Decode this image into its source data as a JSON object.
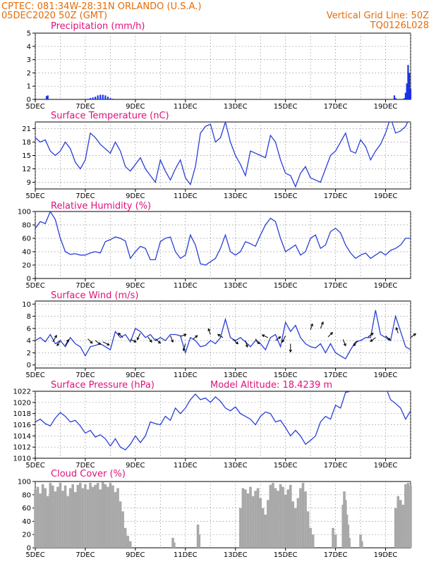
{
  "header": {
    "line1_left": "CPTEC:   081:34W-28:31N   ORLANDO (U.S.A.)",
    "line2_left": "05DEC2020 50Z (GMT)",
    "line1_right": "Vertical Grid Line: 50Z",
    "line2_right": "TQ0126L028"
  },
  "colors": {
    "header": "#e46c0a",
    "panel_title": "#e0107a",
    "precip_bars": "#1a33e6",
    "line_series": "#2a3fd8",
    "cloud_bars": "#a8a8a8",
    "wind_arrows": "#000000"
  },
  "x_axis": {
    "ticks": [
      "5DEC",
      "7DEC",
      "9DEC",
      "11DEC",
      "13DEC",
      "15DEC",
      "17DEC",
      "19DEC"
    ],
    "range_days": [
      0,
      15.0
    ]
  },
  "chart_data": [
    {
      "type": "bar",
      "id": "precip",
      "title": "Precipitation (mm/h)",
      "ylim": [
        0,
        5
      ],
      "yticks": [
        "0",
        "1",
        "2",
        "3",
        "4",
        "5"
      ],
      "grid": true,
      "points": [
        [
          0.45,
          0.25
        ],
        [
          0.5,
          0.3
        ],
        [
          2.1,
          0.05
        ],
        [
          2.2,
          0.1
        ],
        [
          2.3,
          0.15
        ],
        [
          2.4,
          0.2
        ],
        [
          2.5,
          0.3
        ],
        [
          2.6,
          0.35
        ],
        [
          2.7,
          0.35
        ],
        [
          2.8,
          0.3
        ],
        [
          2.9,
          0.2
        ],
        [
          3.0,
          0.1
        ],
        [
          3.1,
          0.05
        ],
        [
          14.35,
          0.3
        ],
        [
          14.4,
          0.1
        ],
        [
          14.75,
          0.1
        ],
        [
          14.8,
          0.5
        ],
        [
          14.85,
          1.2
        ],
        [
          14.9,
          2.6
        ],
        [
          14.95,
          2.0
        ],
        [
          15.0,
          0.8
        ]
      ]
    },
    {
      "type": "line",
      "id": "temperature",
      "title": "Surface Temperature (nC)",
      "ylim": [
        7.5,
        22.5
      ],
      "yticks": [
        "9",
        "12",
        "15",
        "18",
        "21"
      ],
      "grid": true,
      "x": [
        0.0,
        0.2,
        0.4,
        0.6,
        0.8,
        1.0,
        1.2,
        1.4,
        1.6,
        1.8,
        2.0,
        2.2,
        2.4,
        2.6,
        2.8,
        3.0,
        3.2,
        3.4,
        3.6,
        3.8,
        4.0,
        4.2,
        4.4,
        4.6,
        4.8,
        5.0,
        5.2,
        5.4,
        5.6,
        5.8,
        6.0,
        6.2,
        6.4,
        6.6,
        6.8,
        7.0,
        7.2,
        7.4,
        7.6,
        7.8,
        8.0,
        8.2,
        8.4,
        8.6,
        8.8,
        9.0,
        9.2,
        9.4,
        9.6,
        9.8,
        10.0,
        10.2,
        10.4,
        10.6,
        10.8,
        11.0,
        11.2,
        11.4,
        11.6,
        11.8,
        12.0,
        12.2,
        12.4,
        12.6,
        12.8,
        13.0,
        13.2,
        13.4,
        13.6,
        13.8,
        14.0,
        14.2,
        14.4,
        14.6,
        14.8,
        15.0
      ],
      "y": [
        19.0,
        18.0,
        18.5,
        16.0,
        15.0,
        16.0,
        18.0,
        16.5,
        13.5,
        12.0,
        14.0,
        20.0,
        19.0,
        17.5,
        16.5,
        15.5,
        18.0,
        16.0,
        12.5,
        11.5,
        13.0,
        14.5,
        12.0,
        10.5,
        9.0,
        14.0,
        11.5,
        9.5,
        12.0,
        14.0,
        10.0,
        8.5,
        12.5,
        20.0,
        21.5,
        22.0,
        18.0,
        19.0,
        22.5,
        18.0,
        15.0,
        13.0,
        10.5,
        16.0,
        15.5,
        15.0,
        14.5,
        19.5,
        18.0,
        14.0,
        11.0,
        10.5,
        8.0,
        11.0,
        12.5,
        10.0,
        9.5,
        9.0,
        12.0,
        15.0,
        16.0,
        18.0,
        20.0,
        16.0,
        15.5,
        18.5,
        17.0,
        14.0,
        16.0,
        17.5,
        20.0,
        23.5,
        20.0,
        20.5,
        21.5,
        24.0
      ]
    },
    {
      "type": "line",
      "id": "humidity",
      "title": "Relative Humidity (%)",
      "ylim": [
        0,
        100
      ],
      "yticks": [
        "0",
        "20",
        "40",
        "60",
        "80",
        "100"
      ],
      "grid": true,
      "x": [
        0.0,
        0.2,
        0.4,
        0.6,
        0.8,
        1.0,
        1.2,
        1.4,
        1.6,
        1.8,
        2.0,
        2.2,
        2.4,
        2.6,
        2.8,
        3.0,
        3.2,
        3.4,
        3.6,
        3.8,
        4.0,
        4.2,
        4.4,
        4.6,
        4.8,
        5.0,
        5.2,
        5.4,
        5.6,
        5.8,
        6.0,
        6.2,
        6.4,
        6.6,
        6.8,
        7.0,
        7.2,
        7.4,
        7.6,
        7.8,
        8.0,
        8.2,
        8.4,
        8.6,
        8.8,
        9.0,
        9.2,
        9.4,
        9.6,
        9.8,
        10.0,
        10.2,
        10.4,
        10.6,
        10.8,
        11.0,
        11.2,
        11.4,
        11.6,
        11.8,
        12.0,
        12.2,
        12.4,
        12.6,
        12.8,
        13.0,
        13.2,
        13.4,
        13.6,
        13.8,
        14.0,
        14.2,
        14.4,
        14.6,
        14.8,
        15.0
      ],
      "y": [
        75,
        85,
        82,
        100,
        88,
        60,
        40,
        36,
        37,
        35,
        35,
        38,
        40,
        38,
        55,
        58,
        62,
        60,
        56,
        30,
        40,
        48,
        45,
        28,
        28,
        55,
        60,
        62,
        40,
        30,
        35,
        65,
        50,
        22,
        20,
        25,
        30,
        45,
        65,
        40,
        35,
        40,
        55,
        52,
        48,
        65,
        80,
        90,
        85,
        60,
        40,
        45,
        50,
        35,
        40,
        60,
        65,
        45,
        50,
        70,
        75,
        68,
        50,
        38,
        30,
        35,
        38,
        30,
        35,
        40,
        35,
        42,
        45,
        50,
        60,
        60
      ]
    },
    {
      "type": "line",
      "id": "wind",
      "title": "Surface Wind (m/s)",
      "ylim": [
        -0.5,
        10.5
      ],
      "yticks": [
        "0",
        "2",
        "4",
        "6",
        "8",
        "10"
      ],
      "grid": true,
      "x": [
        0.0,
        0.2,
        0.4,
        0.6,
        0.8,
        1.0,
        1.2,
        1.4,
        1.6,
        1.8,
        2.0,
        2.2,
        2.4,
        2.6,
        2.8,
        3.0,
        3.2,
        3.4,
        3.6,
        3.8,
        4.0,
        4.2,
        4.4,
        4.6,
        4.8,
        5.0,
        5.2,
        5.4,
        5.6,
        5.8,
        6.0,
        6.2,
        6.4,
        6.6,
        6.8,
        7.0,
        7.2,
        7.4,
        7.6,
        7.8,
        8.0,
        8.2,
        8.4,
        8.6,
        8.8,
        9.0,
        9.2,
        9.4,
        9.6,
        9.8,
        10.0,
        10.2,
        10.4,
        10.6,
        10.8,
        11.0,
        11.2,
        11.4,
        11.6,
        11.8,
        12.0,
        12.2,
        12.4,
        12.6,
        12.8,
        13.0,
        13.2,
        13.4,
        13.6,
        13.8,
        14.0,
        14.2,
        14.4,
        14.6,
        14.8,
        15.0
      ],
      "y": [
        4.0,
        4.5,
        3.8,
        5.0,
        3.5,
        4.0,
        3.0,
        4.5,
        3.5,
        3.0,
        1.5,
        3.0,
        3.2,
        3.5,
        3.0,
        2.5,
        5.5,
        4.5,
        5.0,
        3.8,
        6.0,
        5.5,
        4.5,
        5.0,
        4.0,
        4.5,
        4.0,
        5.0,
        5.0,
        4.8,
        2.0,
        4.5,
        4.0,
        3.0,
        3.2,
        4.0,
        3.5,
        4.5,
        7.5,
        4.5,
        4.0,
        4.5,
        3.8,
        3.0,
        4.0,
        3.5,
        2.5,
        4.5,
        5.0,
        3.0,
        7.0,
        5.5,
        6.5,
        4.5,
        3.5,
        3.0,
        2.8,
        3.5,
        2.0,
        3.5,
        2.0,
        1.5,
        1.0,
        2.5,
        3.8,
        4.0,
        4.5,
        4.5,
        9.0,
        5.0,
        4.5,
        4.0,
        8.0,
        5.5,
        3.0,
        2.5
      ],
      "arrows": [
        {
          "x": 0.7,
          "y": 3.8,
          "u": 0.6,
          "v": 1.0
        },
        {
          "x": 1.0,
          "y": 4.0,
          "u": -0.5,
          "v": -0.8
        },
        {
          "x": 1.2,
          "y": 3.2,
          "u": 0.5,
          "v": 0.9
        },
        {
          "x": 2.1,
          "y": 4.3,
          "u": 0.7,
          "v": -0.7
        },
        {
          "x": 2.4,
          "y": 4.0,
          "u": 0.8,
          "v": -0.6
        },
        {
          "x": 2.7,
          "y": 3.8,
          "u": 1.0,
          "v": -0.5
        },
        {
          "x": 3.5,
          "y": 4.5,
          "u": -0.7,
          "v": 0.7
        },
        {
          "x": 3.8,
          "y": 4.2,
          "u": 0.9,
          "v": -0.4
        },
        {
          "x": 4.2,
          "y": 5.2,
          "u": -0.5,
          "v": -1.0
        },
        {
          "x": 4.5,
          "y": 4.6,
          "u": 0.6,
          "v": -0.8
        },
        {
          "x": 4.8,
          "y": 4.3,
          "u": 0.8,
          "v": -0.7
        },
        {
          "x": 5.4,
          "y": 4.8,
          "u": 0.4,
          "v": -1.0
        },
        {
          "x": 5.8,
          "y": 4.7,
          "u": 0.9,
          "v": 0.3
        },
        {
          "x": 6.0,
          "y": 3.5,
          "u": -0.3,
          "v": -1.1
        },
        {
          "x": 6.3,
          "y": 4.2,
          "u": 0.7,
          "v": 0.6
        },
        {
          "x": 7.0,
          "y": 5.0,
          "u": -0.3,
          "v": 0.9
        },
        {
          "x": 7.5,
          "y": 4.5,
          "u": -0.8,
          "v": 0.5
        },
        {
          "x": 7.9,
          "y": 4.2,
          "u": 0.8,
          "v": -0.7
        },
        {
          "x": 8.4,
          "y": 4.0,
          "u": 0.3,
          "v": -1.0
        },
        {
          "x": 8.8,
          "y": 4.3,
          "u": 0.6,
          "v": -0.8
        },
        {
          "x": 9.3,
          "y": 4.5,
          "u": -0.9,
          "v": 0.4
        },
        {
          "x": 9.6,
          "y": 4.0,
          "u": 0.8,
          "v": 0.6
        },
        {
          "x": 10.0,
          "y": 4.8,
          "u": -0.5,
          "v": -1.0
        },
        {
          "x": 10.2,
          "y": 3.5,
          "u": 0.0,
          "v": -1.3
        },
        {
          "x": 11.0,
          "y": 5.8,
          "u": 0.3,
          "v": 0.9
        },
        {
          "x": 11.4,
          "y": 6.0,
          "u": 0.4,
          "v": 1.0
        },
        {
          "x": 11.7,
          "y": 4.6,
          "u": 0.7,
          "v": 0.7
        },
        {
          "x": 12.3,
          "y": 4.2,
          "u": 0.4,
          "v": -1.0
        },
        {
          "x": 12.9,
          "y": 4.0,
          "u": -0.7,
          "v": -0.8
        },
        {
          "x": 13.3,
          "y": 4.6,
          "u": 0.8,
          "v": 0.6
        },
        {
          "x": 13.6,
          "y": 4.5,
          "u": -0.8,
          "v": -0.6
        },
        {
          "x": 14.0,
          "y": 4.8,
          "u": 0.7,
          "v": -0.7
        },
        {
          "x": 14.5,
          "y": 5.2,
          "u": -0.3,
          "v": 0.9
        },
        {
          "x": 15.0,
          "y": 4.5,
          "u": 0.8,
          "v": 0.6
        }
      ]
    },
    {
      "type": "line",
      "id": "pressure",
      "title": "Surface Pressure (hPa)",
      "annotation": "Model Altitude: 18.4239 m",
      "ylim": [
        1010,
        1022
      ],
      "yticks": [
        "1010",
        "1012",
        "1014",
        "1016",
        "1018",
        "1020",
        "1022"
      ],
      "grid": true,
      "x": [
        0.0,
        0.2,
        0.4,
        0.6,
        0.8,
        1.0,
        1.2,
        1.4,
        1.6,
        1.8,
        2.0,
        2.2,
        2.4,
        2.6,
        2.8,
        3.0,
        3.2,
        3.4,
        3.6,
        3.8,
        4.0,
        4.2,
        4.4,
        4.6,
        4.8,
        5.0,
        5.2,
        5.4,
        5.6,
        5.8,
        6.0,
        6.2,
        6.4,
        6.6,
        6.8,
        7.0,
        7.2,
        7.4,
        7.6,
        7.8,
        8.0,
        8.2,
        8.4,
        8.6,
        8.8,
        9.0,
        9.2,
        9.4,
        9.6,
        9.8,
        10.0,
        10.2,
        10.4,
        10.6,
        10.8,
        11.0,
        11.2,
        11.4,
        11.6,
        11.8,
        12.0,
        12.2,
        12.4,
        12.6,
        12.8,
        13.0,
        13.2,
        13.4,
        13.6,
        13.8,
        14.0,
        14.2,
        14.4,
        14.6,
        14.8,
        15.0
      ],
      "y": [
        1016.5,
        1017.0,
        1016.2,
        1015.8,
        1017.2,
        1018.2,
        1017.5,
        1016.5,
        1016.8,
        1015.8,
        1014.5,
        1015.0,
        1013.8,
        1014.2,
        1013.5,
        1012.2,
        1013.5,
        1012.0,
        1011.5,
        1012.5,
        1014.0,
        1012.8,
        1014.0,
        1016.5,
        1016.2,
        1016.0,
        1017.5,
        1016.8,
        1019.0,
        1018.0,
        1019.0,
        1020.5,
        1021.5,
        1020.5,
        1020.8,
        1020.0,
        1021.0,
        1020.2,
        1019.0,
        1018.5,
        1019.2,
        1018.0,
        1017.5,
        1017.0,
        1016.0,
        1017.5,
        1018.3,
        1018.0,
        1016.5,
        1016.8,
        1015.5,
        1014.0,
        1015.0,
        1014.0,
        1012.5,
        1013.2,
        1014.0,
        1016.5,
        1017.5,
        1017.0,
        1019.5,
        1019.0,
        1021.8,
        1022.0,
        1022.5,
        1022.8,
        1022.5,
        1022.8,
        1023.0,
        1023.0,
        1022.8,
        1020.5,
        1019.8,
        1019.0,
        1017.0,
        1018.5
      ]
    },
    {
      "type": "bar",
      "id": "cloud",
      "title": "Cloud Cover (%)",
      "ylim": [
        0,
        100
      ],
      "yticks": [
        "0",
        "20",
        "40",
        "60",
        "80",
        "100"
      ],
      "grid": true,
      "points": [
        [
          0.0,
          88
        ],
        [
          0.1,
          92
        ],
        [
          0.2,
          82
        ],
        [
          0.3,
          96
        ],
        [
          0.4,
          90
        ],
        [
          0.5,
          78
        ],
        [
          0.6,
          98
        ],
        [
          0.7,
          94
        ],
        [
          0.8,
          85
        ],
        [
          0.9,
          92
        ],
        [
          1.0,
          98
        ],
        [
          1.1,
          86
        ],
        [
          1.2,
          94
        ],
        [
          1.3,
          78
        ],
        [
          1.4,
          90
        ],
        [
          1.5,
          96
        ],
        [
          1.6,
          84
        ],
        [
          1.7,
          95
        ],
        [
          1.8,
          98
        ],
        [
          1.9,
          90
        ],
        [
          2.0,
          96
        ],
        [
          2.1,
          88
        ],
        [
          2.2,
          98
        ],
        [
          2.3,
          92
        ],
        [
          2.4,
          95
        ],
        [
          2.5,
          98
        ],
        [
          2.6,
          88
        ],
        [
          2.7,
          99
        ],
        [
          2.8,
          96
        ],
        [
          2.9,
          92
        ],
        [
          3.0,
          98
        ],
        [
          3.1,
          94
        ],
        [
          3.2,
          84
        ],
        [
          3.3,
          90
        ],
        [
          3.4,
          70
        ],
        [
          3.5,
          55
        ],
        [
          3.6,
          30
        ],
        [
          3.7,
          18
        ],
        [
          3.8,
          10
        ],
        [
          5.5,
          15
        ],
        [
          5.55,
          8
        ],
        [
          6.5,
          35
        ],
        [
          6.55,
          20
        ],
        [
          8.2,
          60
        ],
        [
          8.3,
          90
        ],
        [
          8.4,
          88
        ],
        [
          8.5,
          82
        ],
        [
          8.6,
          92
        ],
        [
          8.7,
          78
        ],
        [
          8.8,
          86
        ],
        [
          8.9,
          90
        ],
        [
          9.0,
          75
        ],
        [
          9.1,
          60
        ],
        [
          9.2,
          50
        ],
        [
          9.3,
          72
        ],
        [
          9.4,
          95
        ],
        [
          9.5,
          98
        ],
        [
          9.6,
          90
        ],
        [
          9.7,
          86
        ],
        [
          9.8,
          96
        ],
        [
          9.9,
          92
        ],
        [
          10.0,
          80
        ],
        [
          10.1,
          88
        ],
        [
          10.2,
          95
        ],
        [
          10.3,
          70
        ],
        [
          10.4,
          60
        ],
        [
          10.5,
          75
        ],
        [
          10.6,
          90
        ],
        [
          10.7,
          98
        ],
        [
          10.8,
          85
        ],
        [
          10.9,
          55
        ],
        [
          11.0,
          30
        ],
        [
          11.1,
          20
        ],
        [
          11.9,
          30
        ],
        [
          12.0,
          20
        ],
        [
          12.3,
          65
        ],
        [
          12.35,
          85
        ],
        [
          12.4,
          72
        ],
        [
          12.45,
          50
        ],
        [
          12.5,
          35
        ],
        [
          12.55,
          15
        ],
        [
          13.0,
          20
        ],
        [
          13.05,
          10
        ],
        [
          14.4,
          60
        ],
        [
          14.5,
          78
        ],
        [
          14.6,
          72
        ],
        [
          14.7,
          65
        ],
        [
          14.8,
          96
        ],
        [
          14.9,
          98
        ],
        [
          15.0,
          94
        ]
      ]
    }
  ]
}
